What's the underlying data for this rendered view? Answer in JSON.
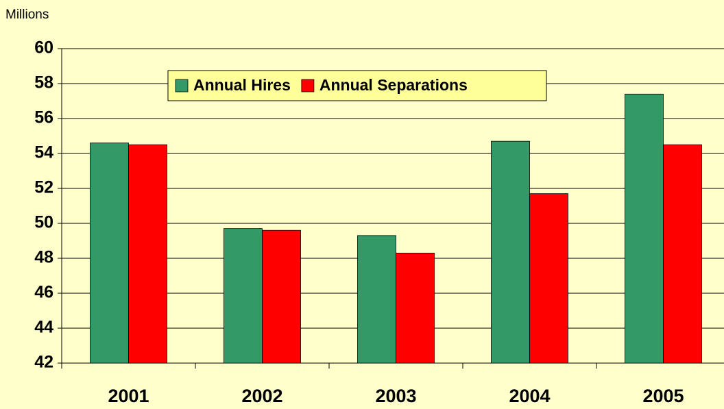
{
  "chart_data": {
    "type": "bar",
    "y_axis_label": "Millions",
    "categories": [
      "2001",
      "2002",
      "2003",
      "2004",
      "2005"
    ],
    "series": [
      {
        "name": "Annual Hires",
        "color": "#339966",
        "values": [
          54.6,
          49.7,
          49.3,
          54.7,
          57.4
        ]
      },
      {
        "name": "Annual Separations",
        "color": "#ff0000",
        "values": [
          54.5,
          49.6,
          48.3,
          51.7,
          54.5
        ]
      }
    ],
    "ylim": [
      42,
      60
    ],
    "yticks": [
      42,
      44,
      46,
      48,
      50,
      52,
      54,
      56,
      58,
      60
    ],
    "grid": true
  }
}
